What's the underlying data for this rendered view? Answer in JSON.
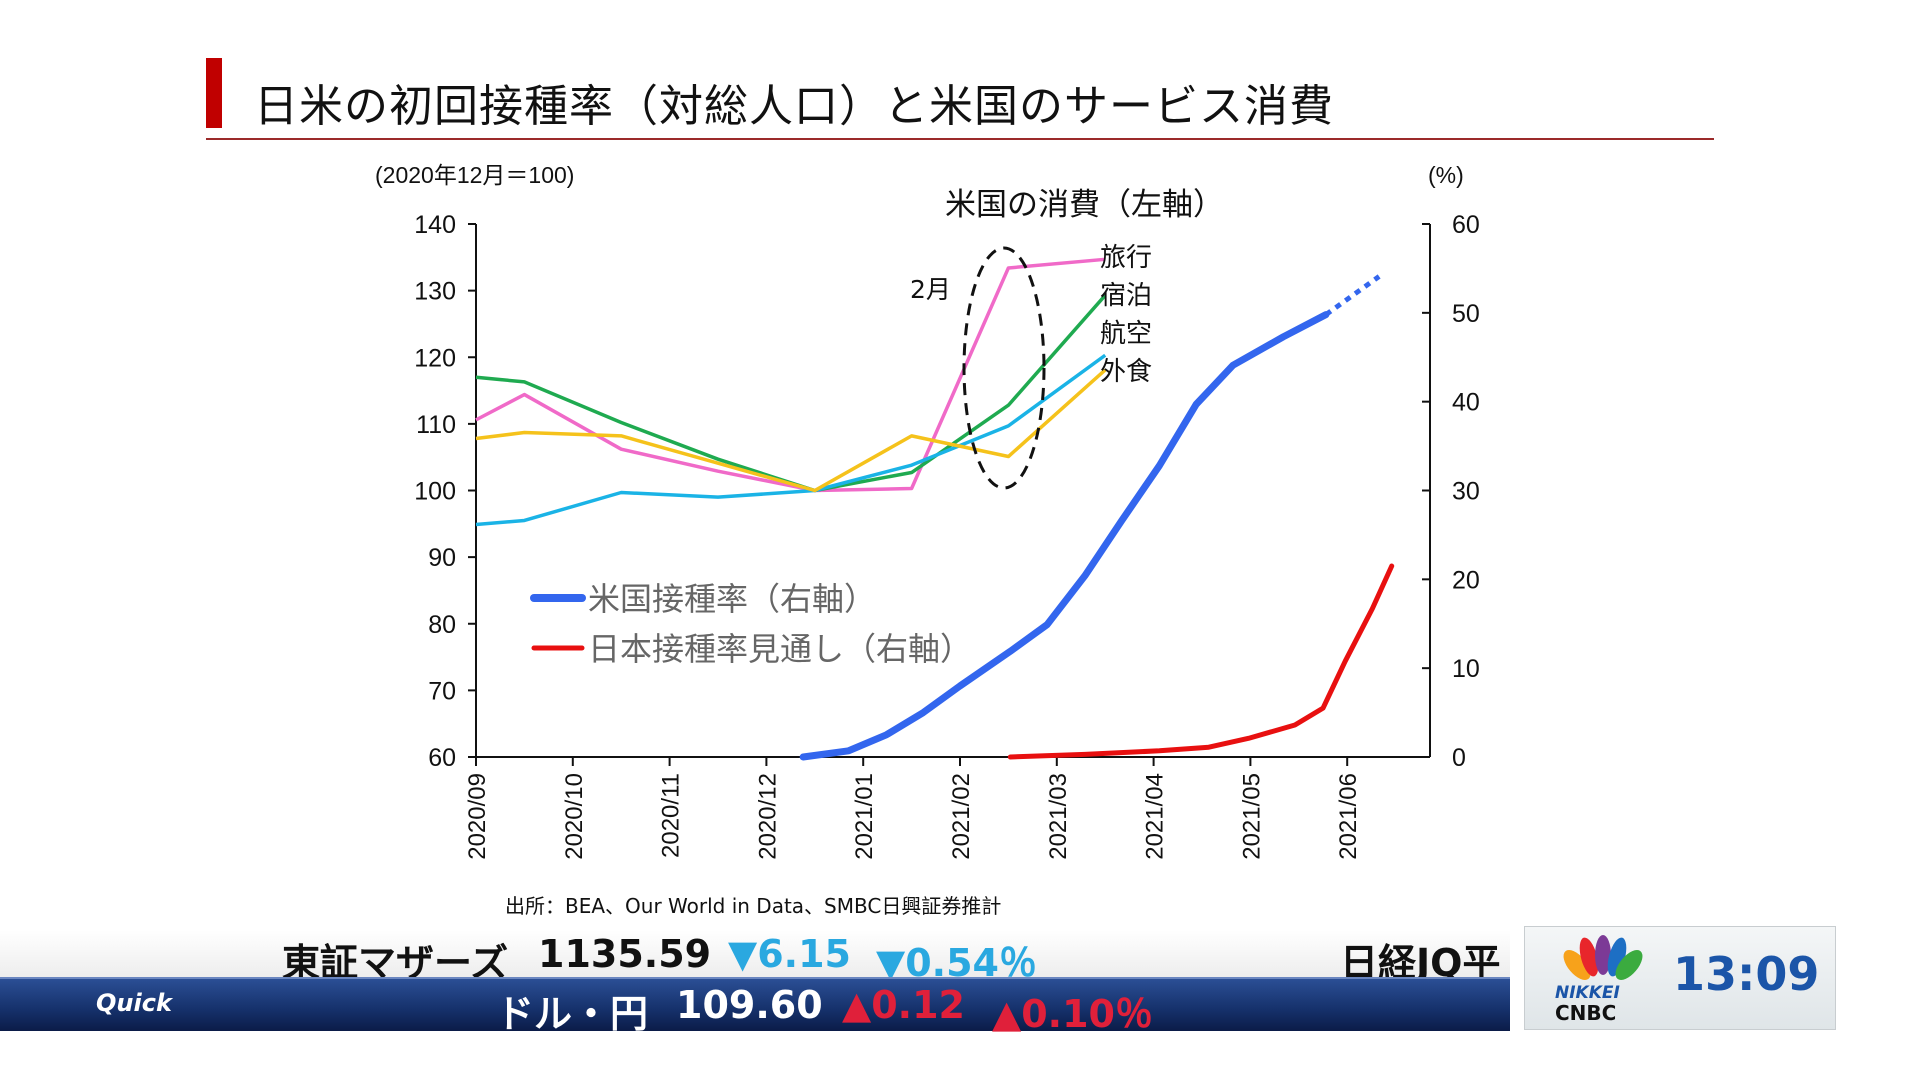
{
  "header": {
    "title": "日米の初回接種率（対総人口）と米国のサービス消費"
  },
  "chart_data": {
    "type": "line",
    "left_axis_label": "(2020年12月＝100)",
    "right_axis_label": "(%)",
    "left_ylim": [
      60,
      140
    ],
    "left_ticks": [
      "140",
      "130",
      "120",
      "110",
      "100",
      "90",
      "80",
      "70",
      "60"
    ],
    "right_ylim": [
      0,
      60
    ],
    "right_ticks": [
      "60",
      "50",
      "40",
      "30",
      "20",
      "10",
      "0"
    ],
    "x_ticks": [
      "2020/09",
      "2020/10",
      "2020/11",
      "2020/12",
      "2021/01",
      "2021/02",
      "2021/03",
      "2021/04",
      "2021/05",
      "2021/06"
    ],
    "consumption_title": "米国の消費（左軸）",
    "annotation": "2月",
    "source": "出所：BEA、Our World in Data、SMBC日興証券推計",
    "consumption_x": [
      0,
      0.5,
      1.5,
      2.5,
      3.5,
      4.5,
      5.5,
      6.5
    ],
    "consumption_series": [
      {
        "name": "旅行",
        "color": "#f06ac8",
        "values": [
          110.6,
          114.4,
          106.2,
          102.9,
          100,
          100.3,
          133.4,
          134.7
        ]
      },
      {
        "name": "宿泊",
        "color": "#1faa50",
        "values": [
          117,
          116.3,
          110.2,
          104.7,
          100,
          102.7,
          112.8,
          129.3
        ]
      },
      {
        "name": "航空",
        "color": "#1ab3e6",
        "values": [
          94.9,
          95.5,
          99.7,
          99,
          100,
          103.8,
          109.7,
          120.3
        ]
      },
      {
        "name": "外食",
        "color": "#f5c21b",
        "values": [
          107.8,
          108.7,
          108.2,
          104.1,
          100,
          108.2,
          105.1,
          118.1
        ]
      }
    ],
    "vaccination_series": [
      {
        "name": "米国接種率（右軸）",
        "color": "#3366ee",
        "x": [
          3.38,
          3.85,
          4.24,
          4.62,
          5.0,
          5.52,
          5.9,
          6.29,
          6.67,
          7.06,
          7.44,
          7.82,
          8.34,
          8.78
        ],
        "values": [
          0,
          0.7,
          2.5,
          5,
          8,
          11.9,
          14.9,
          20.4,
          26.6,
          32.8,
          39.7,
          44.1,
          47.3,
          49.8
        ],
        "projection_x": [
          8.78,
          9.33
        ],
        "projection_values": [
          49.8,
          54.1
        ]
      },
      {
        "name": "日本接種率見通し（右軸）",
        "color": "#e81010",
        "x": [
          5.52,
          6.29,
          7.06,
          7.57,
          7.98,
          8.46,
          8.75,
          8.98,
          9.26,
          9.46
        ],
        "values": [
          0,
          0.3,
          0.7,
          1.1,
          2.1,
          3.6,
          5.5,
          10.8,
          16.7,
          21.5
        ]
      }
    ]
  },
  "ticker": {
    "top_name": "東証マザーズ",
    "top_value": "1135.59",
    "top_change": "▼6.15",
    "top_pct": "▼0.54％",
    "top_next": "日経JQ平",
    "brand": "Quick",
    "bot_name": "ドル・円",
    "bot_value": "109.60",
    "bot_change": "▲0.12",
    "bot_pct": "▲0.10％"
  },
  "logo": {
    "nikkei": "NIKKEI",
    "cnbc": "CNBC",
    "time": "13:09"
  }
}
